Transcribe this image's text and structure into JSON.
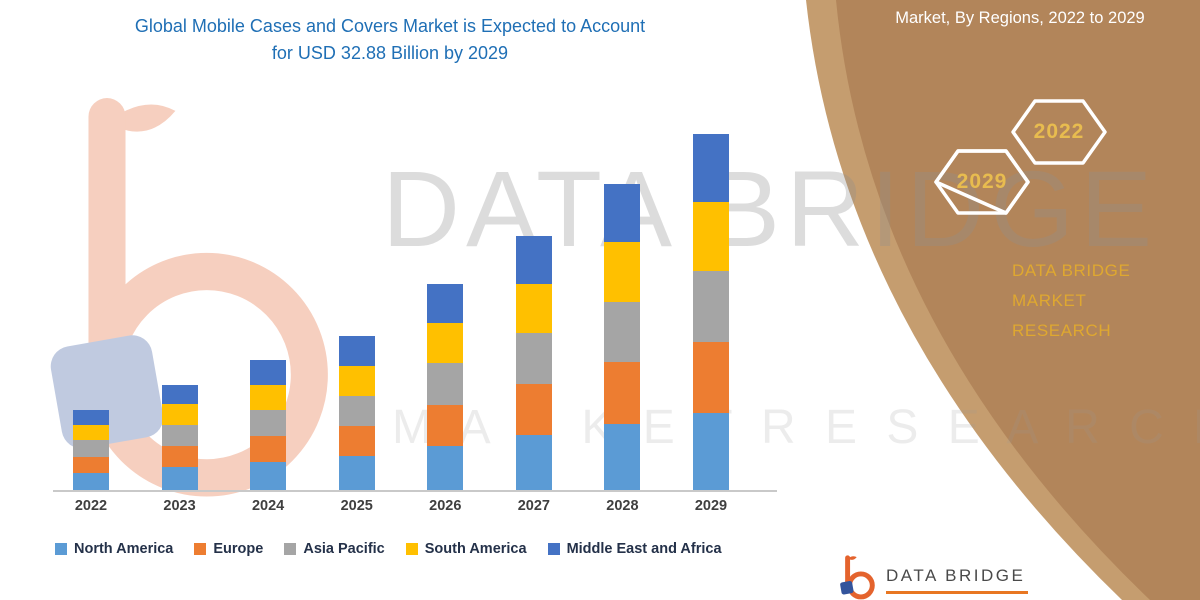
{
  "colors": {
    "title_blue": "#1F6FB5",
    "panel_brown": "#B2855A",
    "panel_band": "#C59D6F",
    "gold_text": "#DFA830",
    "brand_orange": "#E4632D",
    "brand_blue": "#33549C",
    "axis_line": "#C9C9C9"
  },
  "title": {
    "line1": "Global Mobile Cases and Covers Market is Expected to Account",
    "line2": "for USD 32.88 Billion by 2029"
  },
  "panel": {
    "title": "Market, By Regions, 2022 to 2029",
    "hexagon_years": [
      "2029",
      "2022"
    ],
    "brand_line1": "DATA BRIDGE MARKET",
    "brand_line2": "RESEARCH"
  },
  "watermark": {
    "big": "DATA BRIDGE",
    "spaced": "M A R K E T   R E S E A R C H"
  },
  "footer": {
    "brand": "DATA BRIDGE"
  },
  "chart_data": {
    "type": "bar",
    "stacked": true,
    "title": "Global Mobile Cases and Covers Market is Expected to Account for USD 32.88 Billion by 2029",
    "unit": "USD Billion",
    "categories": [
      "2022",
      "2023",
      "2024",
      "2025",
      "2026",
      "2027",
      "2028",
      "2029"
    ],
    "series": [
      {
        "name": "North America",
        "color": "#5B9BD5",
        "values": [
          1.6,
          2.1,
          2.6,
          3.1,
          4.1,
          5.1,
          6.1,
          7.1
        ]
      },
      {
        "name": "Europe",
        "color": "#ED7D31",
        "values": [
          1.5,
          2.0,
          2.4,
          2.8,
          3.8,
          4.7,
          5.7,
          6.6
        ]
      },
      {
        "name": "Asia Pacific",
        "color": "#A5A5A5",
        "values": [
          1.5,
          1.9,
          2.4,
          2.8,
          3.8,
          4.7,
          5.6,
          6.5
        ]
      },
      {
        "name": "South America",
        "color": "#FFC000",
        "values": [
          1.4,
          1.9,
          2.3,
          2.8,
          3.7,
          4.5,
          5.5,
          6.4
        ]
      },
      {
        "name": "Middle East and Africa",
        "color": "#4472C4",
        "values": [
          1.4,
          1.8,
          2.3,
          2.7,
          3.6,
          4.5,
          5.4,
          6.28
        ]
      }
    ],
    "totals": [
      7.4,
      9.7,
      12.0,
      14.2,
      19.0,
      23.5,
      28.3,
      32.88
    ],
    "ylim": [
      0,
      33
    ],
    "grid": false,
    "legend_position": "bottom"
  }
}
